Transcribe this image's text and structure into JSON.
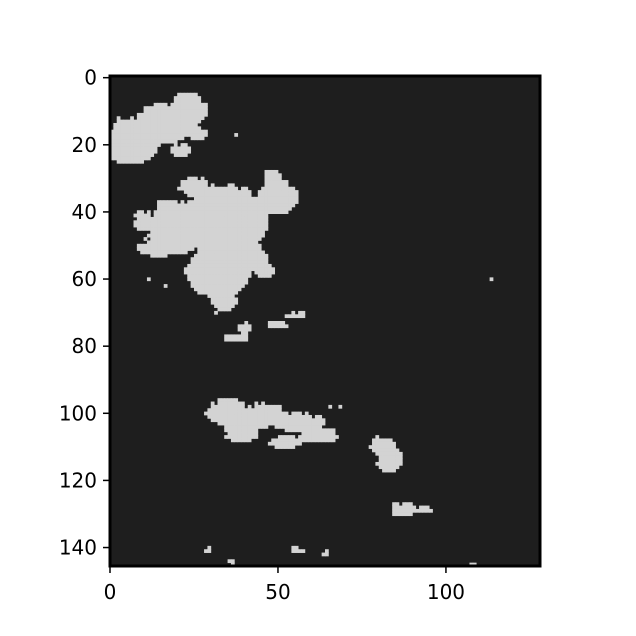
{
  "colors": {
    "background": "#1e1e1e",
    "foreground": "#d3d3d3",
    "axes": "#000000",
    "figure": "#ffffff"
  },
  "chart_data": {
    "type": "heatmap",
    "title": "",
    "xlabel": "",
    "ylabel": "",
    "image_shape": [
      146,
      128
    ],
    "xlim": [
      0,
      128
    ],
    "ylim": [
      146,
      0
    ],
    "grid": false,
    "legend": "none",
    "xticks": [
      0,
      50,
      100
    ],
    "yticks": [
      0,
      20,
      40,
      60,
      80,
      100,
      120,
      140
    ],
    "xtick_labels": [
      "0",
      "50",
      "100"
    ],
    "ytick_labels": [
      "0",
      "20",
      "40",
      "60",
      "80",
      "100",
      "120",
      "140"
    ],
    "description_of_values": "binary mask: 1 = light gray region, 0 = dark background",
    "regions": [
      {
        "name": "upper-left-blob",
        "x_range": [
          0,
          28
        ],
        "y_range": [
          5,
          27
        ]
      },
      {
        "name": "central-blob",
        "x_range": [
          7,
          55
        ],
        "y_range": [
          24,
          69
        ]
      },
      {
        "name": "lower-central-fragments",
        "x_range": [
          29,
          56
        ],
        "y_range": [
          69,
          79
        ]
      },
      {
        "name": "middle-band",
        "x_range": [
          28,
          70
        ],
        "y_range": [
          95,
          113
        ]
      },
      {
        "name": "right-blob-1",
        "x_range": [
          76,
          89
        ],
        "y_range": [
          107,
          120
        ]
      },
      {
        "name": "right-blob-2",
        "x_range": [
          83,
          96
        ],
        "y_range": [
          126,
          131
        ]
      },
      {
        "name": "bottom-specks",
        "x_range": [
          27,
          109
        ],
        "y_range": [
          140,
          146
        ]
      },
      {
        "name": "isolated-dot",
        "x_range": [
          113,
          115
        ],
        "y_range": [
          59,
          61
        ]
      }
    ]
  }
}
